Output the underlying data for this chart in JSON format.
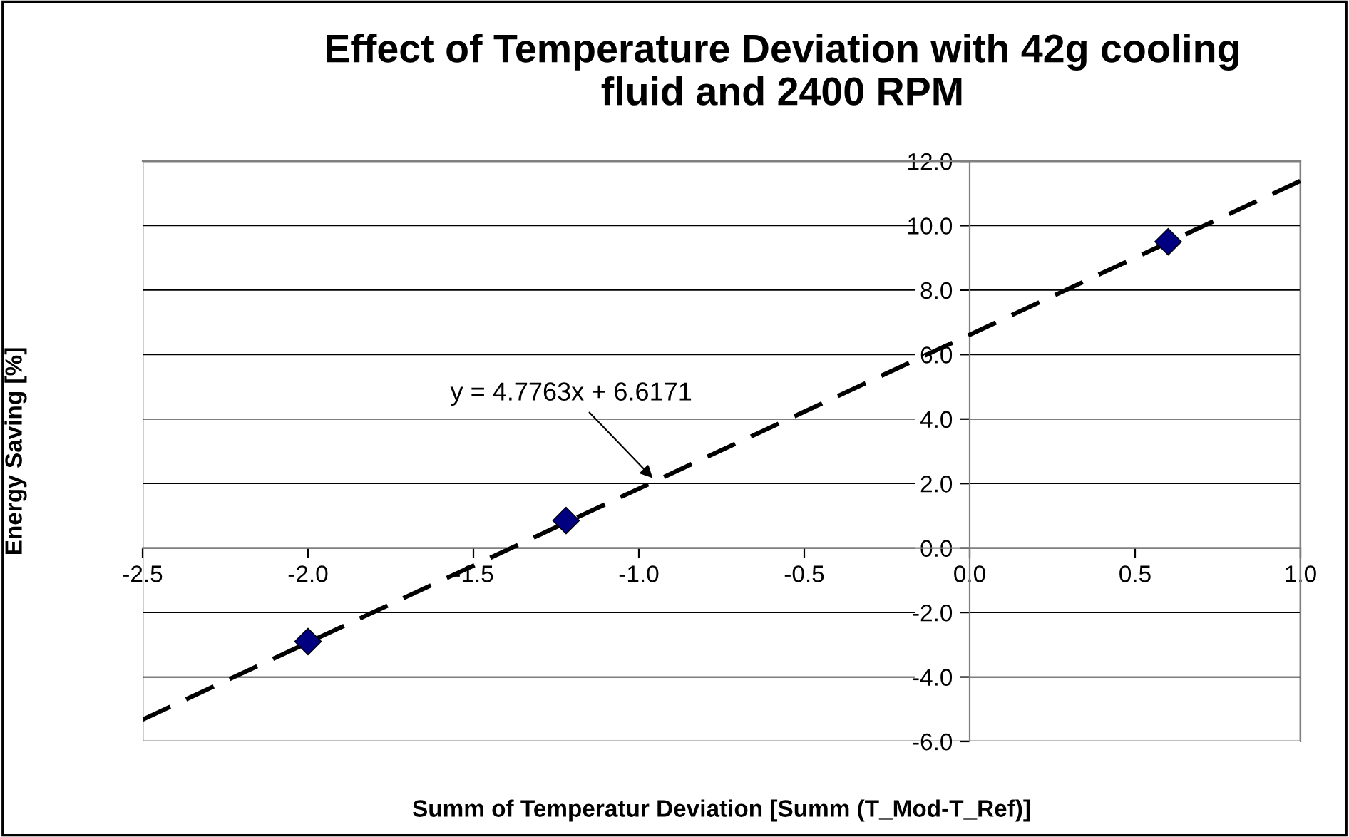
{
  "chart_data": {
    "type": "scatter",
    "title": "Effect of Temperature Deviation with 42g cooling\nfluid and 2400 RPM",
    "xlabel": "Summ of Temperatur Deviation [Summ (T_Mod-T_Ref)]",
    "ylabel": "Energy Saving [%]",
    "series": [
      {
        "type": "scatter",
        "color": "#000080",
        "marker": "diamond",
        "x": [
          -2.0,
          -1.22,
          0.6
        ],
        "values": [
          -2.9,
          0.85,
          9.5
        ]
      },
      {
        "type": "line",
        "color": "#000000",
        "marker": "none",
        "line_style": "dashed",
        "x": [
          -2.5,
          1.0
        ],
        "values": [
          -5.32,
          11.39
        ]
      }
    ],
    "annotations": [
      {
        "text": "y = 4.7763x + 6.6171",
        "x": -0.95,
        "y": 2.08
      }
    ],
    "xlim": [
      -2.5,
      1.0
    ],
    "ylim": [
      -6,
      12
    ],
    "xticks": [
      {
        "value": -2.5,
        "label": "-2.5"
      },
      {
        "value": -2.0,
        "label": "-2.0"
      },
      {
        "value": -1.5,
        "label": "-1.5"
      },
      {
        "value": -1.0,
        "label": "-1.0"
      },
      {
        "value": -0.5,
        "label": "-0.5"
      },
      {
        "value": 0,
        "label": "0.0"
      },
      {
        "value": 0.5,
        "label": "0.5"
      },
      {
        "value": 1.0,
        "label": "1.0"
      }
    ],
    "yticks": [
      {
        "value": -6,
        "label": "-6.0"
      },
      {
        "value": -4,
        "label": "-4.0"
      },
      {
        "value": -2,
        "label": "-2.0"
      },
      {
        "value": 0,
        "label": "0.0"
      },
      {
        "value": 2,
        "label": "2.0"
      },
      {
        "value": 4,
        "label": "4.0"
      },
      {
        "value": 6,
        "label": "6.0"
      },
      {
        "value": 8,
        "label": "8.0"
      },
      {
        "value": 10,
        "label": "10.0"
      },
      {
        "value": 12,
        "label": "12.0"
      }
    ],
    "grid": "y",
    "legend": false
  }
}
